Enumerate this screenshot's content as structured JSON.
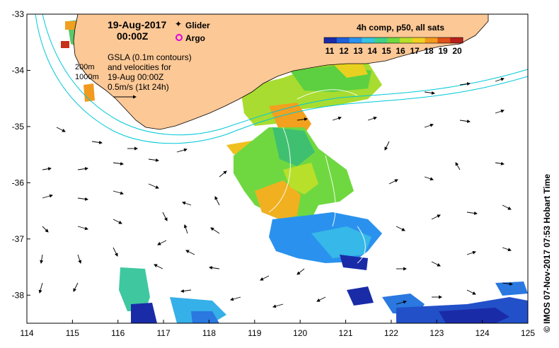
{
  "header": {
    "date": "19-Aug-2017",
    "time": "00:00Z",
    "legend_glider": "Glider",
    "legend_argo": "Argo"
  },
  "annotations": {
    "depth_200": "200m",
    "depth_1000": "1000m",
    "gsla_lines": [
      "GSLA (0.1m contours)",
      "and velocities for",
      "19-Aug 00:00Z",
      "0.5m/s (1kt 24h)"
    ]
  },
  "colorbar": {
    "title": "4h comp, p50, all sats",
    "ticks": [
      "11",
      "12",
      "13",
      "14",
      "15",
      "16",
      "17",
      "18",
      "19",
      "20"
    ],
    "colors": [
      "#1a2ba8",
      "#1f5fd8",
      "#2a92ee",
      "#36c2e0",
      "#3fd08a",
      "#6fd840",
      "#b8e02a",
      "#f0d020",
      "#f29a1e",
      "#e0501a",
      "#b8201a"
    ]
  },
  "credit": "© IMOS 07-Nov-2017 07:53 Hobart Time",
  "colors": {
    "land": "#fcc896",
    "isobath": "#00c8d8",
    "ocean": "#ffffff"
  },
  "chart_data": {
    "type": "map",
    "xlim": [
      114,
      125
    ],
    "ylim": [
      -38.5,
      -33
    ],
    "x_ticks": [
      114,
      115,
      116,
      117,
      118,
      119,
      120,
      121,
      122,
      123,
      124,
      125
    ],
    "y_ticks": [
      -33,
      -34,
      -35,
      -36,
      -37,
      -38
    ],
    "x_tick_labels": [
      "114",
      "115",
      "116",
      "117",
      "118",
      "119",
      "120",
      "121",
      "122",
      "123",
      "124",
      "125"
    ],
    "y_tick_labels": [
      "-33",
      "-34",
      "-35",
      "-36",
      "-37",
      "-38"
    ],
    "grid": false
  }
}
